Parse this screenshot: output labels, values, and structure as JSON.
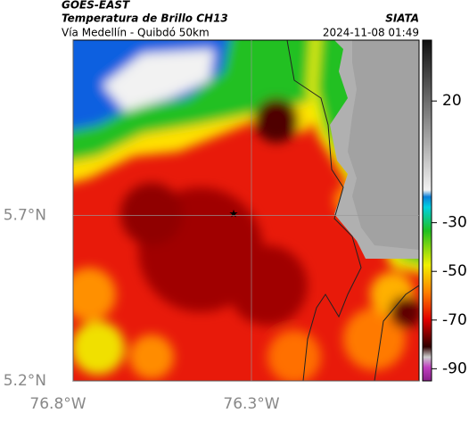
{
  "header": {
    "satellite": "GOES-EAST",
    "product": "Temperatura de Brillo CH13",
    "route": "Vía Medellín - Quibdó 50km",
    "source": "SIATA",
    "datetime": "2024-11-08 01:49"
  },
  "map": {
    "xlim": [
      -76.8,
      -75.83
    ],
    "ylim": [
      5.2,
      6.23
    ],
    "xticks": [
      {
        "value": -76.8,
        "label": "76.8°W"
      },
      {
        "value": -76.3,
        "label": "76.3°W"
      }
    ],
    "yticks": [
      {
        "value": 5.7,
        "label": "5.7°N"
      },
      {
        "value": 5.2,
        "label": "5.2°N"
      }
    ],
    "grid": true
  },
  "colorbar": {
    "clim": [
      -95,
      45
    ],
    "ticks": [
      20,
      -30,
      -50,
      -70,
      -90
    ]
  }
}
